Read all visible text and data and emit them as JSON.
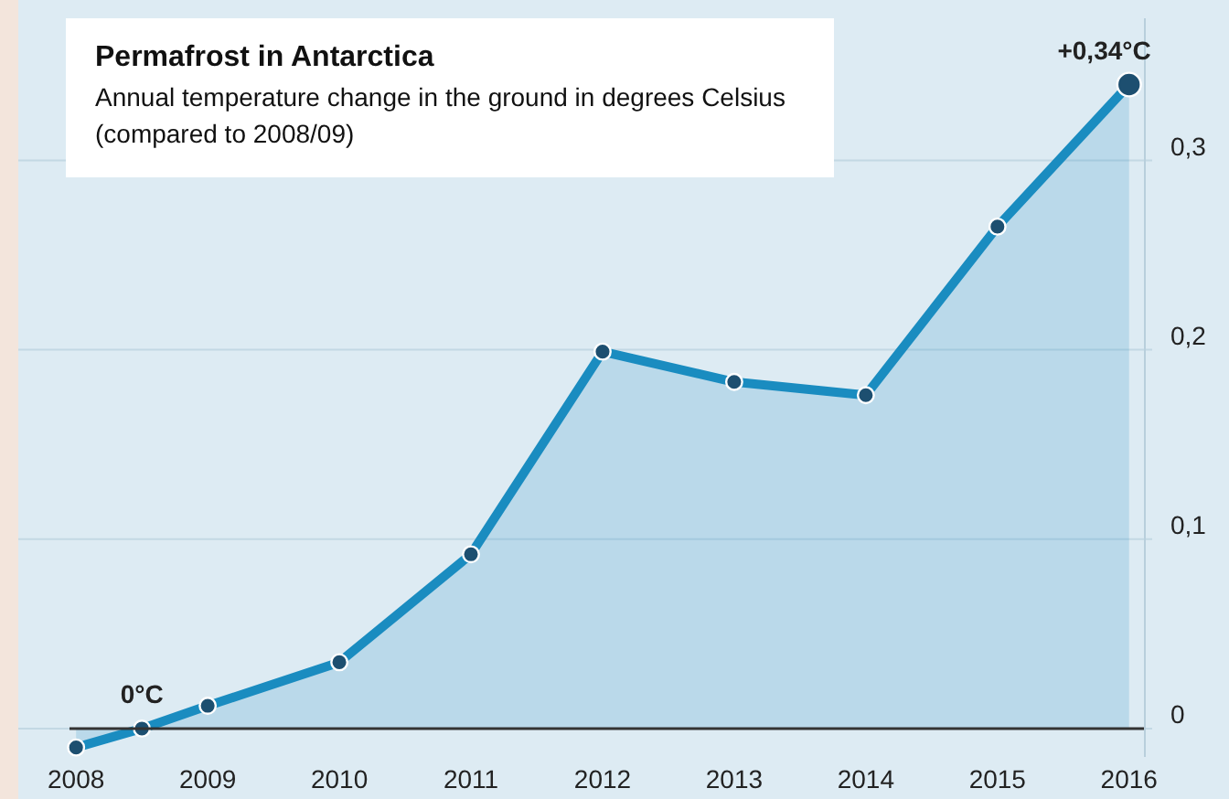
{
  "chart_data": {
    "type": "area",
    "title": "Permafrost in Antarctica",
    "subtitle": "Annual temperature change in the ground in degrees Celsius\n(compared to 2008/09)",
    "x": [
      2008,
      2008.5,
      2009,
      2010,
      2011,
      2012,
      2013,
      2014,
      2015,
      2016
    ],
    "series": [
      {
        "color": "#1a8cc0",
        "values": [
          -0.01,
          0.0,
          0.012,
          0.035,
          0.092,
          0.199,
          0.183,
          0.176,
          0.265,
          0.34
        ]
      }
    ],
    "xlim": [
      2007.95,
      2016.12
    ],
    "xticks": [
      2008,
      2009,
      2010,
      2011,
      2012,
      2013,
      2014,
      2015,
      2016
    ],
    "ylim": [
      -0.015,
      0.375
    ],
    "yticks": [
      {
        "value": 0,
        "label": "0"
      },
      {
        "value": 0.1,
        "label": "0,1"
      },
      {
        "value": 0.2,
        "label": "0,2"
      },
      {
        "value": 0.3,
        "label": "0,3"
      }
    ],
    "grid": "y",
    "marker": "circle",
    "line_style": "solid",
    "annotations": [
      {
        "text": "0°C",
        "x": 2008.5,
        "y": 0
      },
      {
        "text": "+0,34°C",
        "x": 2016,
        "y": 0.34
      }
    ]
  }
}
